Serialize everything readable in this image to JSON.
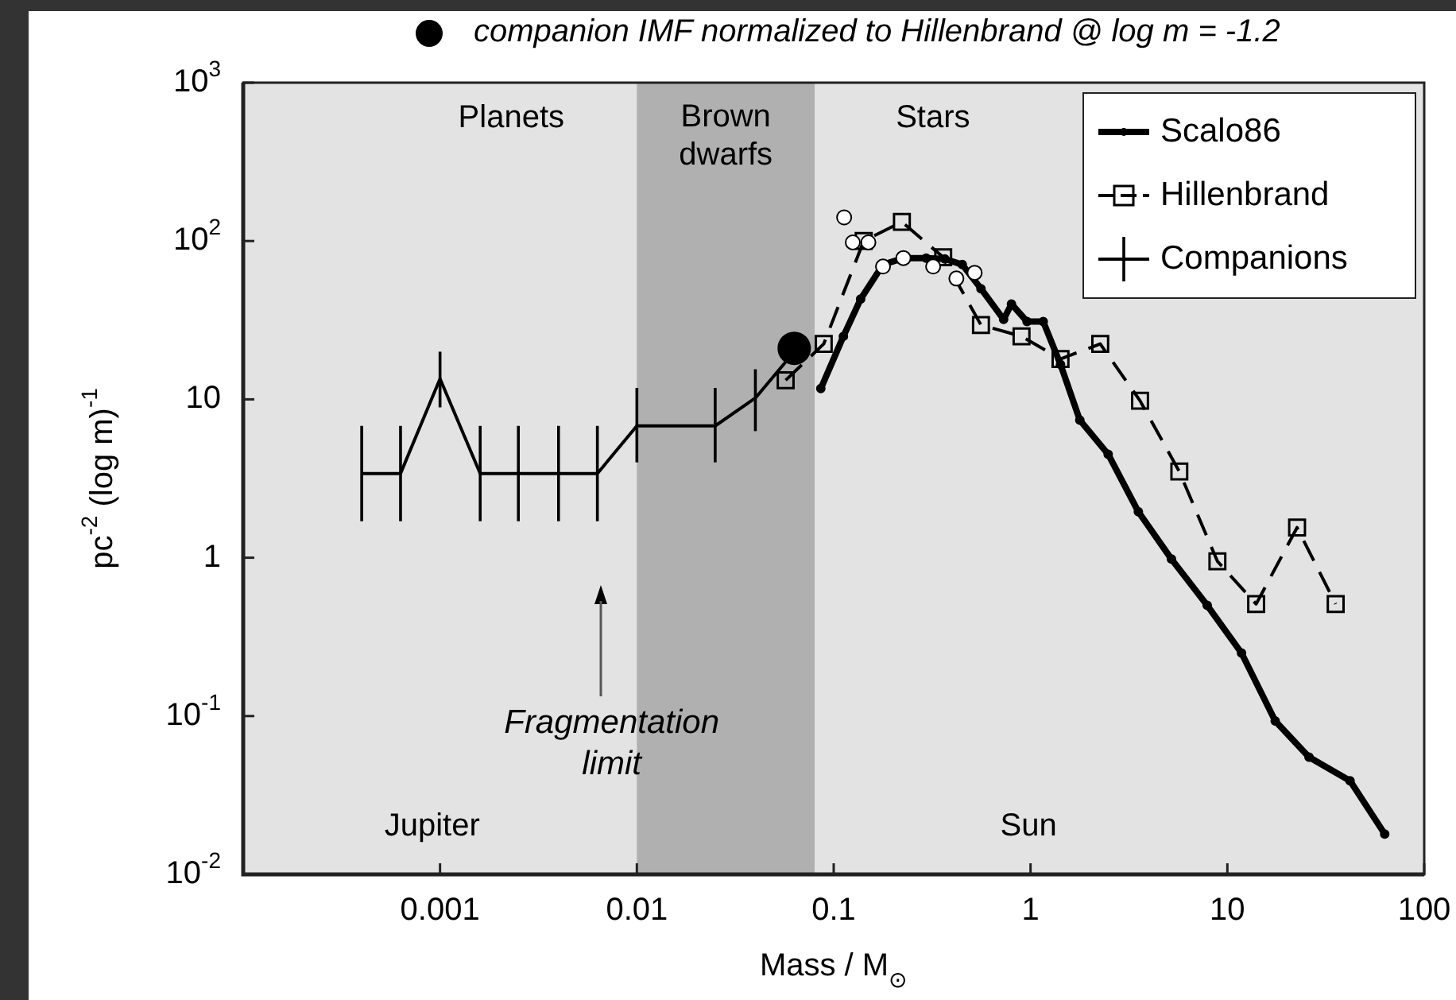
{
  "chart_data": {
    "type": "line",
    "xlabel": "Mass / M$_{⊙}$",
    "ylabel": "pc$^{-2}$ (log m)$^{-1}$",
    "log": "xy",
    "grid": false,
    "legend": "top right",
    "xlim": [
      0.0001,
      100
    ],
    "xticks": [
      0.001,
      0.01,
      0.1,
      1,
      10,
      100
    ],
    "ylim": [
      0.01,
      1000
    ],
    "yticks": [
      {
        "value": 0.01,
        "label": "10$^{-2}$"
      },
      {
        "value": 0.1,
        "label": "10$^{-1}$"
      },
      1,
      10,
      {
        "value": 100,
        "label": "10$^{2}$"
      },
      {
        "value": 1000,
        "label": "10$^{3}$"
      }
    ],
    "bands": [
      {
        "axis": "x",
        "from": 0.01,
        "to": 0.08,
        "label": "Brown dwarfs",
        "color": "#b0b0b0"
      }
    ],
    "annotations": [
      "Planets",
      "Stars",
      "Jupiter",
      "Sun",
      "Fragmentation limit"
    ],
    "series": [
      {
        "name": "Scalo86",
        "marker": "circle",
        "color": "#000000",
        "x": [
          0.086,
          0.112,
          0.137,
          0.178,
          0.226,
          0.295,
          0.367,
          0.45,
          0.56,
          0.73,
          0.8,
          0.96,
          1.16,
          1.42,
          1.78,
          2.48,
          3.53,
          5.2,
          7.9,
          11.8,
          17.5,
          26,
          42,
          63
        ],
        "values": [
          11.7,
          25,
          43,
          71,
          78,
          78,
          77,
          71,
          50,
          32,
          40,
          31,
          31,
          16.6,
          7.4,
          4.5,
          1.95,
          0.98,
          0.5,
          0.25,
          0.093,
          0.055,
          0.039,
          0.018
        ]
      },
      {
        "name": "Hillenbrand",
        "marker": "square",
        "line_style": "dashed",
        "color": "#000000",
        "x": [
          0.057,
          0.089,
          0.142,
          0.222,
          0.36,
          0.56,
          0.9,
          1.42,
          2.26,
          3.6,
          5.7,
          8.9,
          14,
          22.6,
          35.5
        ],
        "values": [
          13.2,
          22.4,
          100,
          132,
          79,
          29.5,
          25,
          18,
          22.4,
          9.8,
          3.5,
          0.95,
          0.51,
          1.55,
          0.51
        ]
      },
      {
        "name": "Companions",
        "marker": "none",
        "color": "#000000",
        "x": [
          0.0004,
          0.00063,
          0.001,
          0.0016,
          0.0025,
          0.004,
          0.0063,
          0.01,
          0.025,
          0.04,
          0.063
        ],
        "values": [
          3.4,
          3.4,
          13.5,
          3.4,
          3.4,
          3.4,
          3.4,
          6.8,
          6.8,
          10.2,
          20
        ],
        "errors": [
          [
            1.7,
            6.8
          ],
          [
            1.7,
            6.8
          ],
          [
            8.9,
            20
          ],
          [
            1.7,
            6.8
          ],
          [
            1.7,
            6.8
          ],
          [
            1.7,
            6.8
          ],
          [
            1.7,
            6.8
          ],
          [
            4,
            11.8
          ],
          [
            4,
            11.8
          ],
          [
            6.3,
            15.5
          ],
          null
        ]
      },
      {
        "type": "scatter",
        "marker": "circle",
        "color": "#ffffff",
        "x": [
          0.113,
          0.125,
          0.15,
          0.178,
          0.226,
          0.32,
          0.42,
          0.52
        ],
        "values": [
          141,
          98,
          98,
          69,
          78,
          69,
          58,
          63
        ]
      },
      {
        "name": "companion IMF normalized to Hillenbrand @ log m = -1.2",
        "type": "scatter",
        "marker": "circle",
        "color": "#000000",
        "x": [
          0.063
        ],
        "values": [
          21
        ]
      }
    ]
  }
}
